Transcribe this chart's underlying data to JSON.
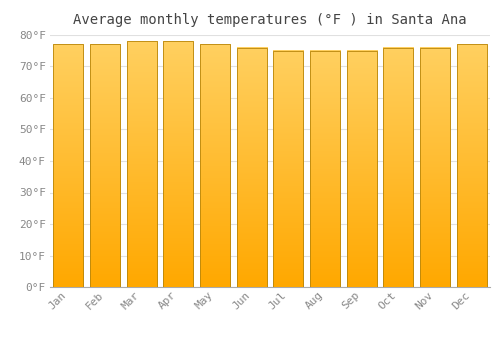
{
  "title": "Average monthly temperatures (°F ) in Santa Ana",
  "categories": [
    "Jan",
    "Feb",
    "Mar",
    "Apr",
    "May",
    "Jun",
    "Jul",
    "Aug",
    "Sep",
    "Oct",
    "Nov",
    "Dec"
  ],
  "values": [
    77,
    77,
    78,
    78,
    77,
    76,
    75,
    75,
    75,
    76,
    76,
    77
  ],
  "bar_color_main": "#FFA500",
  "bar_color_light": "#FFD070",
  "bar_edge_color": "#B8860B",
  "background_color": "#FFFFFF",
  "grid_color": "#E0E0E0",
  "text_color": "#888888",
  "title_color": "#444444",
  "ylim": [
    0,
    80
  ],
  "yticks": [
    0,
    10,
    20,
    30,
    40,
    50,
    60,
    70,
    80
  ],
  "ytick_labels": [
    "0°F",
    "10°F",
    "20°F",
    "30°F",
    "40°F",
    "50°F",
    "60°F",
    "70°F",
    "80°F"
  ],
  "title_fontsize": 10,
  "tick_fontsize": 8
}
